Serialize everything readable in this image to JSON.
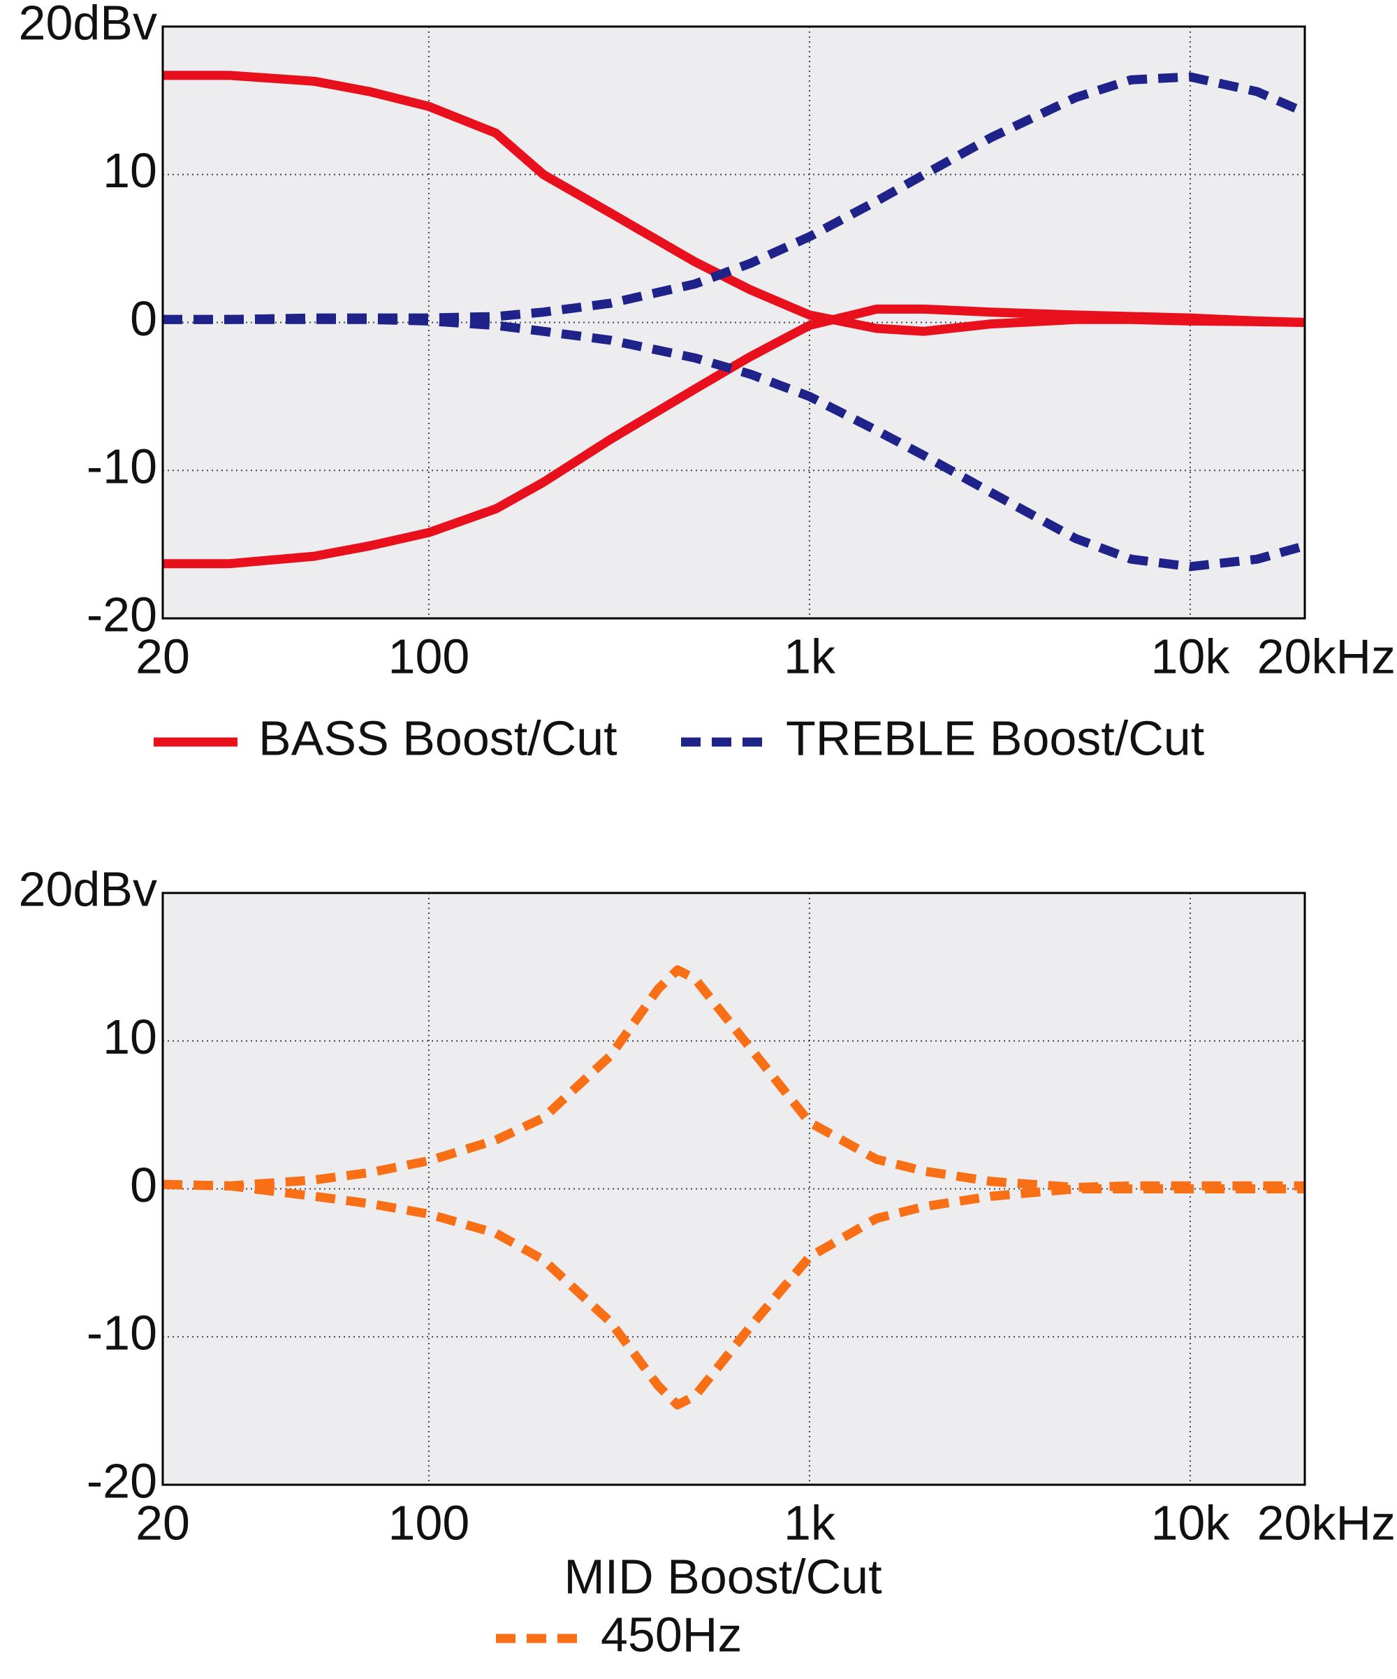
{
  "chart_data": [
    {
      "type": "line",
      "log_x": true,
      "grid": true,
      "legend": "bottom",
      "xlim": [
        20,
        20000
      ],
      "ylim": [
        -20,
        20
      ],
      "xticks": [
        20,
        100,
        {
          "value": 1000,
          "label": "1k"
        },
        {
          "value": 10000,
          "label": "10k"
        },
        {
          "value": 20000,
          "label": "20kHz"
        }
      ],
      "yticks": [
        {
          "value": 20,
          "label": "20dBv"
        },
        10,
        0,
        -10,
        -20
      ],
      "x": [
        20,
        30,
        50,
        70,
        100,
        150,
        200,
        300,
        500,
        700,
        1000,
        1500,
        2000,
        3000,
        5000,
        7000,
        10000,
        15000,
        20000
      ],
      "series": [
        {
          "name": "BASS Boost/Cut",
          "color": "#e8101c",
          "dashed": false,
          "boost": [
            16.7,
            16.7,
            16.3,
            15.6,
            14.6,
            12.8,
            10.0,
            7.4,
            4.1,
            2.2,
            0.5,
            -0.4,
            -0.6,
            -0.1,
            0.2,
            0.2,
            0.1,
            0.05,
            0
          ],
          "cut": [
            -16.3,
            -16.3,
            -15.8,
            -15.1,
            -14.2,
            -12.6,
            -10.8,
            -7.9,
            -4.5,
            -2.3,
            -0.2,
            0.9,
            0.9,
            0.7,
            0.5,
            0.4,
            0.3,
            0.1,
            0
          ]
        },
        {
          "name": "TREBLE Boost/Cut",
          "color": "#1f2289",
          "dashed": true,
          "boost": [
            0.2,
            0.2,
            0.3,
            0.3,
            0.3,
            0.4,
            0.7,
            1.3,
            2.6,
            4.0,
            5.8,
            8.2,
            10.0,
            12.5,
            15.2,
            16.4,
            16.6,
            15.6,
            14.2
          ],
          "cut": [
            0.2,
            0.2,
            0.2,
            0.2,
            0.1,
            -0.2,
            -0.6,
            -1.2,
            -2.4,
            -3.5,
            -5.0,
            -7.3,
            -9.0,
            -11.5,
            -14.6,
            -16.0,
            -16.5,
            -16.0,
            -15.1
          ]
        }
      ]
    },
    {
      "type": "line",
      "log_x": true,
      "grid": true,
      "legend": "bottom",
      "legend_title": "MID Boost/Cut",
      "xlim": [
        20,
        20000
      ],
      "ylim": [
        -20,
        20
      ],
      "xticks": [
        20,
        100,
        {
          "value": 1000,
          "label": "1k"
        },
        {
          "value": 10000,
          "label": "10k"
        },
        {
          "value": 20000,
          "label": "20kHz"
        }
      ],
      "yticks": [
        {
          "value": 20,
          "label": "20dBv"
        },
        10,
        0,
        -10,
        -20
      ],
      "x": [
        20,
        30,
        50,
        70,
        100,
        150,
        200,
        300,
        400,
        450,
        500,
        700,
        1000,
        1500,
        2000,
        3000,
        5000,
        7000,
        10000,
        20000
      ],
      "series": [
        {
          "name": "450Hz",
          "color": "#f96f16",
          "dashed": true,
          "boost": [
            0.3,
            0.2,
            0.6,
            1.1,
            1.9,
            3.3,
            4.8,
            9.0,
            13.5,
            14.8,
            14.2,
            9.5,
            4.5,
            2.0,
            1.2,
            0.5,
            0.1,
            0.2,
            0.2,
            0.2
          ],
          "cut": [
            0.3,
            0.2,
            -0.5,
            -1.0,
            -1.7,
            -3.0,
            -4.8,
            -9.0,
            -13.3,
            -14.6,
            -14.0,
            -9.3,
            -4.6,
            -2.0,
            -1.2,
            -0.5,
            0,
            0,
            0,
            0
          ]
        }
      ]
    }
  ]
}
